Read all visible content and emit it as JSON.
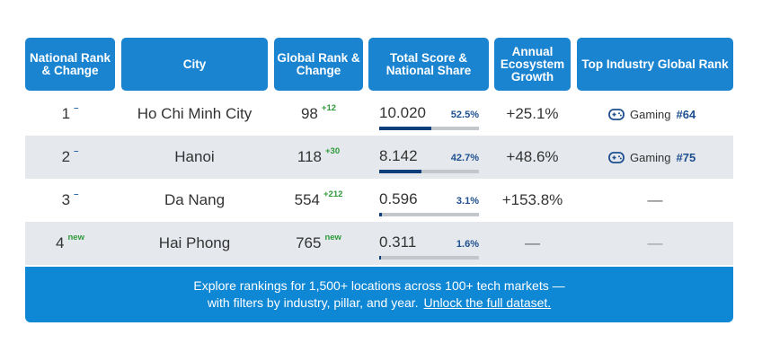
{
  "headers": {
    "national_rank": "National Rank & Change",
    "city": "City",
    "global_rank": "Global Rank & Change",
    "total_score": "Total Score & National Share",
    "annual_growth": "Annual Ecosystem Growth",
    "top_industry": "Top Industry Global Rank"
  },
  "rows": [
    {
      "rank": "1",
      "rank_change": "–",
      "city": "Ho Chi Minh City",
      "global_rank": "98",
      "global_change": "+12",
      "score": "10.020",
      "share": "52.5%",
      "share_fraction": 0.525,
      "growth": "+25.1%",
      "industry": "Gaming",
      "industry_rank": "#64",
      "industry_icon": "gamepad-icon"
    },
    {
      "rank": "2",
      "rank_change": "–",
      "city": "Hanoi",
      "global_rank": "118",
      "global_change": "+30",
      "score": "8.142",
      "share": "42.7%",
      "share_fraction": 0.427,
      "growth": "+48.6%",
      "industry": "Gaming",
      "industry_rank": "#75",
      "industry_icon": "gamepad-icon"
    },
    {
      "rank": "3",
      "rank_change": "–",
      "city": "Da Nang",
      "global_rank": "554",
      "global_change": "+212",
      "score": "0.596",
      "share": "3.1%",
      "share_fraction": 0.031,
      "growth": "+153.8%",
      "industry": "—"
    },
    {
      "rank": "4",
      "rank_change": "new",
      "city": "Hai Phong",
      "global_rank": "765",
      "global_change": "new",
      "score": "0.311",
      "share": "1.6%",
      "share_fraction": 0.016,
      "growth": "—",
      "industry": "—"
    }
  ],
  "footer": {
    "line1": "Explore rankings for 1,500+ locations across 100+ tech markets —",
    "line2": "with filters by industry, pillar, and year.",
    "link": "Unlock the full dataset."
  },
  "colors": {
    "header": "#1a84d1",
    "footer": "#0e87d4",
    "bar": "#0d3f7d",
    "up": "#2e9a3a"
  }
}
